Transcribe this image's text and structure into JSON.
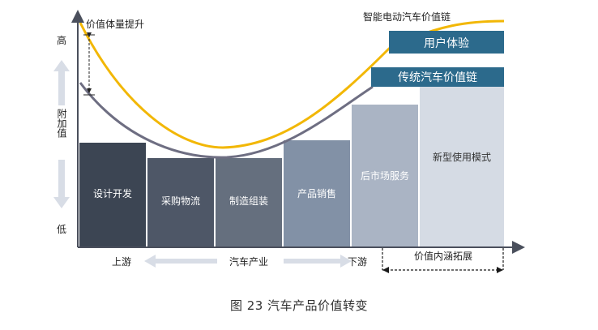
{
  "diagram": {
    "y_axis": {
      "high": "高",
      "label": "附加值",
      "low": "低"
    },
    "annotation": "价值体量提升",
    "bars": [
      {
        "label": "设计开发",
        "color": "#3c4553"
      },
      {
        "label": "采购物流",
        "color": "#4e5767"
      },
      {
        "label": "制造组装",
        "color": "#656f7e"
      },
      {
        "label": "产品销售",
        "color": "#8291a6"
      },
      {
        "label": "后市场服务",
        "color": "#aab4c4"
      },
      {
        "label": "新型使用模式",
        "color": "#d5dbe4"
      }
    ],
    "curves": {
      "smart": {
        "label": "智能电动汽车价值链",
        "color": "#f2b705"
      },
      "traditional": {
        "color": "#6e6e82"
      }
    },
    "boxes": {
      "user_experience": "用户体验",
      "traditional_chain": "传统汽车价值链",
      "box_color": "#2c6a8c"
    },
    "x_axis": {
      "upstream": "上游",
      "industry": "汽车产业",
      "downstream": "下游",
      "extension": "价值内涵拓展"
    }
  },
  "caption": "图 23  汽车产品价值转变"
}
